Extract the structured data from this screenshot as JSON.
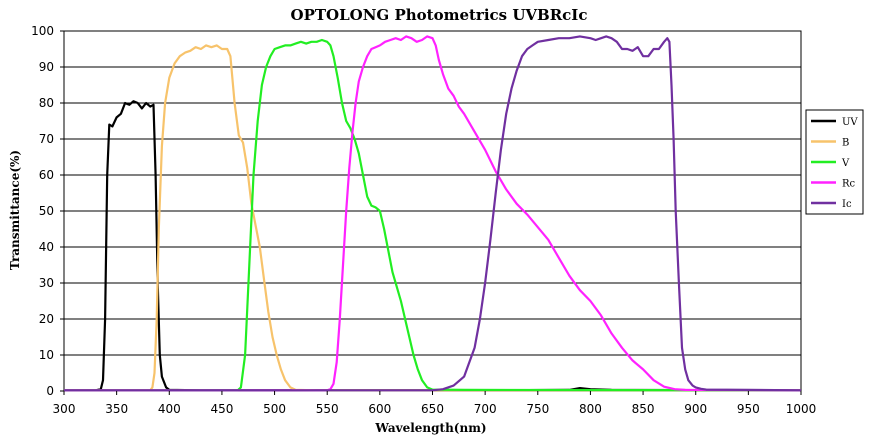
{
  "chart_data": {
    "type": "line",
    "title": "OPTOLONG Photometrics UVBRcIc",
    "xlabel": "Wavelength(nm)",
    "ylabel": "Transmittance(%)",
    "xlim": [
      300,
      1000
    ],
    "ylim": [
      0,
      100
    ],
    "x_ticks": [
      "300",
      "350",
      "400",
      "450",
      "500",
      "550",
      "600",
      "650",
      "700",
      "750",
      "800",
      "850",
      "900",
      "950",
      "1000"
    ],
    "y_ticks": [
      "0",
      "10",
      "20",
      "30",
      "40",
      "50",
      "60",
      "70",
      "80",
      "90",
      "100"
    ],
    "grid": "horizontal",
    "legend_position": "right",
    "series": [
      {
        "name": "UV",
        "color": "#000000",
        "points": [
          [
            300,
            0.2
          ],
          [
            330,
            0.2
          ],
          [
            335,
            0.5
          ],
          [
            337,
            3
          ],
          [
            339,
            20
          ],
          [
            341,
            60
          ],
          [
            343,
            74
          ],
          [
            346,
            73.5
          ],
          [
            350,
            76
          ],
          [
            354,
            77
          ],
          [
            358,
            80
          ],
          [
            362,
            79.5
          ],
          [
            366,
            80.5
          ],
          [
            370,
            80
          ],
          [
            374,
            78.5
          ],
          [
            378,
            80
          ],
          [
            382,
            79
          ],
          [
            385,
            79.5
          ],
          [
            387,
            60
          ],
          [
            389,
            30
          ],
          [
            391,
            10
          ],
          [
            393,
            4
          ],
          [
            397,
            1
          ],
          [
            400,
            0.3
          ],
          [
            430,
            0.2
          ],
          [
            700,
            0.2
          ],
          [
            780,
            0.3
          ],
          [
            790,
            0.8
          ],
          [
            800,
            0.5
          ],
          [
            820,
            0.3
          ],
          [
            1000,
            0.2
          ]
        ]
      },
      {
        "name": "B",
        "color": "#F7C36B",
        "points": [
          [
            300,
            0.2
          ],
          [
            382,
            0.2
          ],
          [
            384,
            1
          ],
          [
            386,
            5
          ],
          [
            388,
            20
          ],
          [
            390,
            45
          ],
          [
            393,
            68
          ],
          [
            396,
            80
          ],
          [
            400,
            87
          ],
          [
            405,
            91
          ],
          [
            410,
            93
          ],
          [
            415,
            94
          ],
          [
            420,
            94.5
          ],
          [
            425,
            95.5
          ],
          [
            430,
            95
          ],
          [
            435,
            96
          ],
          [
            440,
            95.5
          ],
          [
            445,
            96
          ],
          [
            450,
            95
          ],
          [
            455,
            95
          ],
          [
            458,
            93
          ],
          [
            462,
            80
          ],
          [
            466,
            71
          ],
          [
            470,
            69
          ],
          [
            474,
            62
          ],
          [
            478,
            52
          ],
          [
            482,
            46
          ],
          [
            486,
            40
          ],
          [
            490,
            31
          ],
          [
            494,
            22
          ],
          [
            498,
            15
          ],
          [
            502,
            10
          ],
          [
            506,
            6
          ],
          [
            510,
            3
          ],
          [
            515,
            1
          ],
          [
            520,
            0.3
          ],
          [
            540,
            0.2
          ],
          [
            1000,
            0.2
          ]
        ]
      },
      {
        "name": "V",
        "color": "#22EE22",
        "points": [
          [
            300,
            0.2
          ],
          [
            465,
            0.2
          ],
          [
            468,
            1
          ],
          [
            472,
            10
          ],
          [
            476,
            35
          ],
          [
            480,
            60
          ],
          [
            484,
            75
          ],
          [
            488,
            85
          ],
          [
            492,
            90
          ],
          [
            496,
            93
          ],
          [
            500,
            95
          ],
          [
            505,
            95.5
          ],
          [
            510,
            96
          ],
          [
            515,
            96
          ],
          [
            520,
            96.5
          ],
          [
            525,
            97
          ],
          [
            530,
            96.5
          ],
          [
            535,
            97
          ],
          [
            540,
            97
          ],
          [
            545,
            97.5
          ],
          [
            550,
            97
          ],
          [
            553,
            96
          ],
          [
            556,
            93
          ],
          [
            560,
            87
          ],
          [
            564,
            80
          ],
          [
            568,
            75
          ],
          [
            572,
            73
          ],
          [
            576,
            70
          ],
          [
            580,
            66
          ],
          [
            584,
            60
          ],
          [
            588,
            54
          ],
          [
            592,
            51.5
          ],
          [
            596,
            51
          ],
          [
            600,
            50
          ],
          [
            604,
            45
          ],
          [
            608,
            39
          ],
          [
            612,
            33
          ],
          [
            616,
            29
          ],
          [
            620,
            25
          ],
          [
            624,
            20
          ],
          [
            628,
            15
          ],
          [
            632,
            10
          ],
          [
            636,
            6
          ],
          [
            640,
            3
          ],
          [
            645,
            1
          ],
          [
            650,
            0.4
          ],
          [
            680,
            0.3
          ],
          [
            1000,
            0.2
          ]
        ]
      },
      {
        "name": "Rc",
        "color": "#FF22FF",
        "points": [
          [
            300,
            0.2
          ],
          [
            550,
            0.2
          ],
          [
            553,
            0.5
          ],
          [
            556,
            2
          ],
          [
            559,
            8
          ],
          [
            562,
            20
          ],
          [
            565,
            35
          ],
          [
            568,
            50
          ],
          [
            571,
            62
          ],
          [
            574,
            72
          ],
          [
            577,
            80
          ],
          [
            580,
            86
          ],
          [
            584,
            90
          ],
          [
            588,
            93
          ],
          [
            592,
            95
          ],
          [
            596,
            95.5
          ],
          [
            600,
            96
          ],
          [
            605,
            97
          ],
          [
            610,
            97.5
          ],
          [
            615,
            98
          ],
          [
            620,
            97.5
          ],
          [
            625,
            98.5
          ],
          [
            630,
            98
          ],
          [
            635,
            97
          ],
          [
            640,
            97.5
          ],
          [
            645,
            98.5
          ],
          [
            650,
            98
          ],
          [
            653,
            96
          ],
          [
            656,
            92
          ],
          [
            660,
            88
          ],
          [
            665,
            84
          ],
          [
            670,
            82
          ],
          [
            675,
            79
          ],
          [
            680,
            77
          ],
          [
            690,
            72
          ],
          [
            700,
            67
          ],
          [
            710,
            61
          ],
          [
            720,
            56
          ],
          [
            730,
            52
          ],
          [
            740,
            49
          ],
          [
            750,
            45.5
          ],
          [
            760,
            42
          ],
          [
            770,
            37
          ],
          [
            780,
            32
          ],
          [
            790,
            28
          ],
          [
            800,
            25
          ],
          [
            810,
            21
          ],
          [
            820,
            16
          ],
          [
            830,
            12
          ],
          [
            840,
            8.5
          ],
          [
            850,
            6
          ],
          [
            860,
            3
          ],
          [
            870,
            1.2
          ],
          [
            880,
            0.5
          ],
          [
            890,
            0.3
          ],
          [
            1000,
            0.2
          ]
        ]
      },
      {
        "name": "Ic",
        "color": "#7030A0",
        "points": [
          [
            300,
            0.2
          ],
          [
            650,
            0.2
          ],
          [
            660,
            0.5
          ],
          [
            670,
            1.5
          ],
          [
            680,
            4
          ],
          [
            690,
            12
          ],
          [
            695,
            20
          ],
          [
            700,
            30
          ],
          [
            705,
            42
          ],
          [
            710,
            55
          ],
          [
            715,
            67
          ],
          [
            720,
            77
          ],
          [
            725,
            84
          ],
          [
            730,
            89
          ],
          [
            735,
            93
          ],
          [
            740,
            95
          ],
          [
            745,
            96
          ],
          [
            750,
            97
          ],
          [
            760,
            97.5
          ],
          [
            770,
            98
          ],
          [
            780,
            98
          ],
          [
            790,
            98.5
          ],
          [
            800,
            98
          ],
          [
            805,
            97.5
          ],
          [
            810,
            98
          ],
          [
            815,
            98.5
          ],
          [
            820,
            98
          ],
          [
            825,
            97
          ],
          [
            830,
            95
          ],
          [
            835,
            95
          ],
          [
            840,
            94.5
          ],
          [
            845,
            95.5
          ],
          [
            850,
            93
          ],
          [
            855,
            93
          ],
          [
            860,
            95
          ],
          [
            865,
            95
          ],
          [
            870,
            97
          ],
          [
            873,
            98
          ],
          [
            875,
            97
          ],
          [
            877,
            85
          ],
          [
            879,
            70
          ],
          [
            881,
            50
          ],
          [
            884,
            30
          ],
          [
            887,
            12
          ],
          [
            890,
            6
          ],
          [
            893,
            3
          ],
          [
            897,
            1.5
          ],
          [
            900,
            1
          ],
          [
            905,
            0.6
          ],
          [
            910,
            0.4
          ],
          [
            950,
            0.3
          ],
          [
            1000,
            0.2
          ]
        ]
      }
    ]
  }
}
